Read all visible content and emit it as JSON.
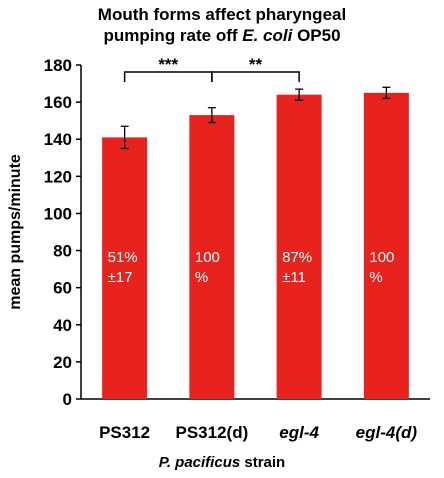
{
  "chart_data": {
    "type": "bar",
    "title_line1": "Mouth forms affect pharyngeal",
    "title_line2_prefix": "pumping rate off ",
    "title_line2_italic": "E. coli",
    "title_line2_suffix": " OP50",
    "ylabel": "mean pumps/minute",
    "xlabel_italic": "P. pacificus",
    "xlabel_suffix": " strain",
    "categories": [
      "PS312",
      "PS312(d)",
      "egl-4",
      "egl-4(d)"
    ],
    "values": [
      141,
      153,
      164,
      165
    ],
    "errors": [
      6,
      4,
      3,
      3
    ],
    "bar_labels": [
      [
        "51%",
        "±17"
      ],
      [
        "100",
        "%"
      ],
      [
        "87%",
        "±11"
      ],
      [
        "100",
        "%"
      ]
    ],
    "ylim": [
      0,
      180
    ],
    "yticks": [
      0,
      20,
      40,
      60,
      80,
      100,
      120,
      140,
      160,
      180
    ],
    "bar_color": "#e8231e",
    "significance": [
      {
        "from": 0,
        "to": 1,
        "label": "***"
      },
      {
        "from": 1,
        "to": 2,
        "label": "**"
      }
    ]
  }
}
